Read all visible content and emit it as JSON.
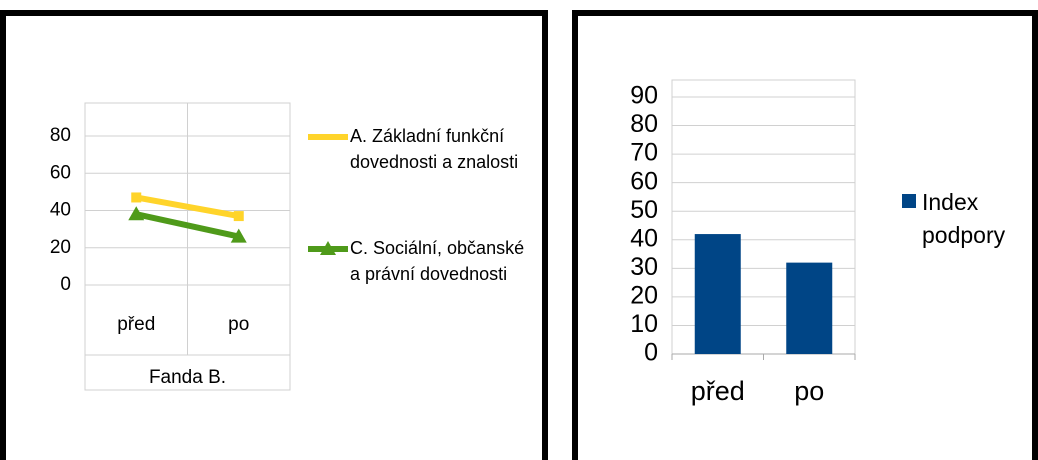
{
  "chart_data": [
    {
      "type": "line",
      "categories": [
        "před",
        "po"
      ],
      "group_label": "Fanda B.",
      "series": [
        {
          "name": "A. Základní funkční dovednosti a znalosti",
          "color": "#ffd42a",
          "marker": "square",
          "values": [
            47,
            37
          ]
        },
        {
          "name": "C. Sociální, občanské a právní dovednosti",
          "color": "#4f9a1a",
          "marker": "triangle",
          "values": [
            38,
            26
          ]
        }
      ],
      "ylim": [
        0,
        80
      ],
      "yticks": [
        0,
        20,
        40,
        60,
        80
      ],
      "grid": true,
      "legend": "right"
    },
    {
      "type": "bar",
      "categories": [
        "před",
        "po"
      ],
      "series": [
        {
          "name": "Index podpory",
          "color": "#004586",
          "values": [
            42,
            32
          ]
        }
      ],
      "ylim": [
        0,
        90
      ],
      "yticks": [
        0,
        10,
        20,
        30,
        40,
        50,
        60,
        70,
        80,
        90
      ],
      "grid": true,
      "legend": "right"
    }
  ]
}
